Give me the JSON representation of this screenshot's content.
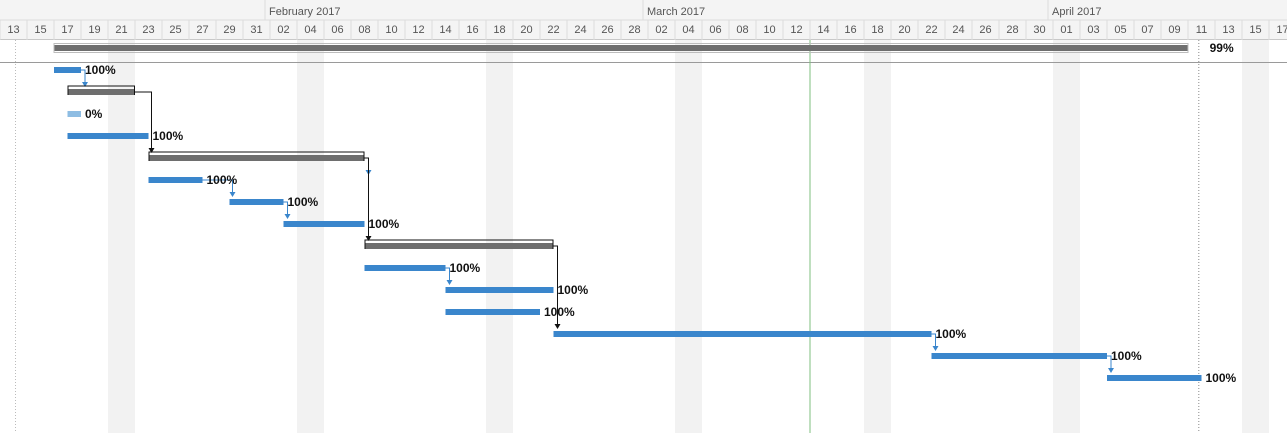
{
  "timeline": {
    "months": [
      {
        "label": "February 2017",
        "start_col": 10
      },
      {
        "label": "March 2017",
        "start_col": 24
      },
      {
        "label": "April 2017",
        "start_col": 39
      }
    ],
    "days": [
      "13",
      "15",
      "17",
      "19",
      "21",
      "23",
      "25",
      "27",
      "29",
      "31",
      "02",
      "04",
      "06",
      "08",
      "10",
      "12",
      "14",
      "16",
      "18",
      "20",
      "22",
      "24",
      "26",
      "28",
      "02",
      "04",
      "06",
      "08",
      "10",
      "12",
      "14",
      "16",
      "18",
      "20",
      "22",
      "24",
      "26",
      "28",
      "30",
      "01",
      "03",
      "05",
      "07",
      "09",
      "11",
      "13",
      "15",
      "17"
    ],
    "today_col": 30,
    "project_end_col": 44.4,
    "weekend_cols": [
      4,
      11,
      18,
      25,
      32,
      39,
      46
    ]
  },
  "tasks": [
    {
      "type": "summary",
      "row": 0,
      "start": 2.0,
      "end": 44.0,
      "label": "99%",
      "label_col": 44.8
    },
    {
      "type": "task",
      "row": 1,
      "start": 2.0,
      "end": 3.0,
      "label": "100%"
    },
    {
      "type": "summary",
      "row": 2,
      "start": 2.5,
      "end": 5.0,
      "label": ""
    },
    {
      "type": "task",
      "row": 3,
      "start": 2.5,
      "end": 3.0,
      "label": "0%",
      "light": true
    },
    {
      "type": "task",
      "row": 4,
      "start": 2.5,
      "end": 5.5,
      "label": "100%"
    },
    {
      "type": "summary",
      "row": 5,
      "start": 5.5,
      "end": 13.5,
      "label": ""
    },
    {
      "type": "task",
      "row": 6,
      "start": 5.5,
      "end": 7.5,
      "label": "100%"
    },
    {
      "type": "task",
      "row": 7,
      "start": 8.5,
      "end": 10.5,
      "label": "100%"
    },
    {
      "type": "task",
      "row": 8,
      "start": 10.5,
      "end": 13.5,
      "label": "100%"
    },
    {
      "type": "summary",
      "row": 9,
      "start": 13.5,
      "end": 20.5,
      "label": ""
    },
    {
      "type": "task",
      "row": 10,
      "start": 13.5,
      "end": 16.5,
      "label": "100%"
    },
    {
      "type": "task",
      "row": 11,
      "start": 16.5,
      "end": 20.5,
      "label": "100%"
    },
    {
      "type": "task",
      "row": 12,
      "start": 16.5,
      "end": 20.0,
      "label": "100%"
    },
    {
      "type": "task",
      "row": 13,
      "start": 20.5,
      "end": 34.5,
      "label": "100%"
    },
    {
      "type": "task",
      "row": 14,
      "start": 34.5,
      "end": 41.0,
      "label": "100%"
    },
    {
      "type": "task",
      "row": 15,
      "start": 41.0,
      "end": 44.5,
      "label": "100%"
    }
  ],
  "links": [
    {
      "from": 1,
      "to": 2,
      "kind": "blue"
    },
    {
      "from": 2,
      "to": 5,
      "kind": "black"
    },
    {
      "from": 5,
      "to": 6,
      "kind": "blue"
    },
    {
      "from": 6,
      "to": 7,
      "kind": "blue"
    },
    {
      "from": 7,
      "to": 8,
      "kind": "blue"
    },
    {
      "from": 5,
      "to": 9,
      "kind": "black"
    },
    {
      "from": 10,
      "to": 11,
      "kind": "blue"
    },
    {
      "from": 9,
      "to": 13,
      "kind": "black"
    },
    {
      "from": 13,
      "to": 14,
      "kind": "blue"
    },
    {
      "from": 14,
      "to": 15,
      "kind": "blue"
    }
  ],
  "colors": {
    "task_bar": "#3a86cc",
    "task_bar_light": "#8ebde3",
    "summary_bar": "#6e6e6e",
    "today_line": "#7fbf7f",
    "weekend_shade": "#f2f2f2",
    "header_bg": "#f4f4f4",
    "grid_line": "#dcdcdc"
  }
}
